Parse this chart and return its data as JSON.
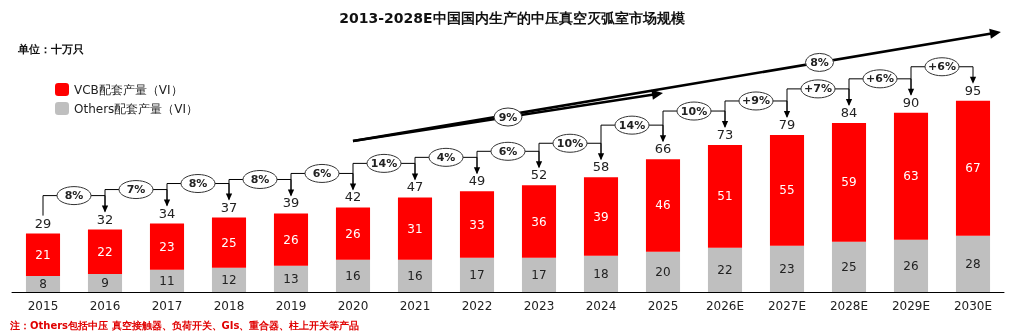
{
  "chart_data": {
    "type": "bar",
    "title": "2013-2028E中国国内生产的中压真空灭弧室市场规模",
    "ylabel": "单位：十万只",
    "categories": [
      "2015",
      "2016",
      "2017",
      "2018",
      "2019",
      "2020",
      "2021",
      "2022",
      "2023",
      "2024",
      "2025",
      "2026E",
      "2027E",
      "2028E",
      "2029E",
      "2030E"
    ],
    "stacked": true,
    "data_labels": true,
    "legend": "top left",
    "tick_labels": "x",
    "series": [
      {
        "name": "Others配套产量（VI）",
        "color": "#bfbfbf",
        "values": [
          8,
          9,
          11,
          12,
          13,
          16,
          16,
          17,
          17,
          18,
          20,
          22,
          23,
          25,
          26,
          28
        ]
      },
      {
        "name": "VCB配套产量（VI）",
        "color": "#ff0000",
        "values": [
          21,
          22,
          23,
          25,
          26,
          26,
          31,
          33,
          36,
          39,
          46,
          51,
          55,
          59,
          63,
          67
        ]
      }
    ],
    "totals": [
      "29",
      "32",
      "34",
      "37",
      "39",
      "42",
      "47",
      "49",
      "52",
      "58",
      "66",
      "73",
      "79",
      "84",
      "90",
      "95"
    ],
    "annotations": [
      "8%",
      "7%",
      "8%",
      "8%",
      "6%",
      "14%",
      "4%",
      "6%",
      "10%",
      "14%",
      "10%",
      "+9%",
      "+7%",
      "+6%",
      "+6%",
      "9%",
      "8%",
      "注：Others包括中压 真空接触器、负荷开关、GIs、重合器、柱上开关等产品"
    ]
  }
}
